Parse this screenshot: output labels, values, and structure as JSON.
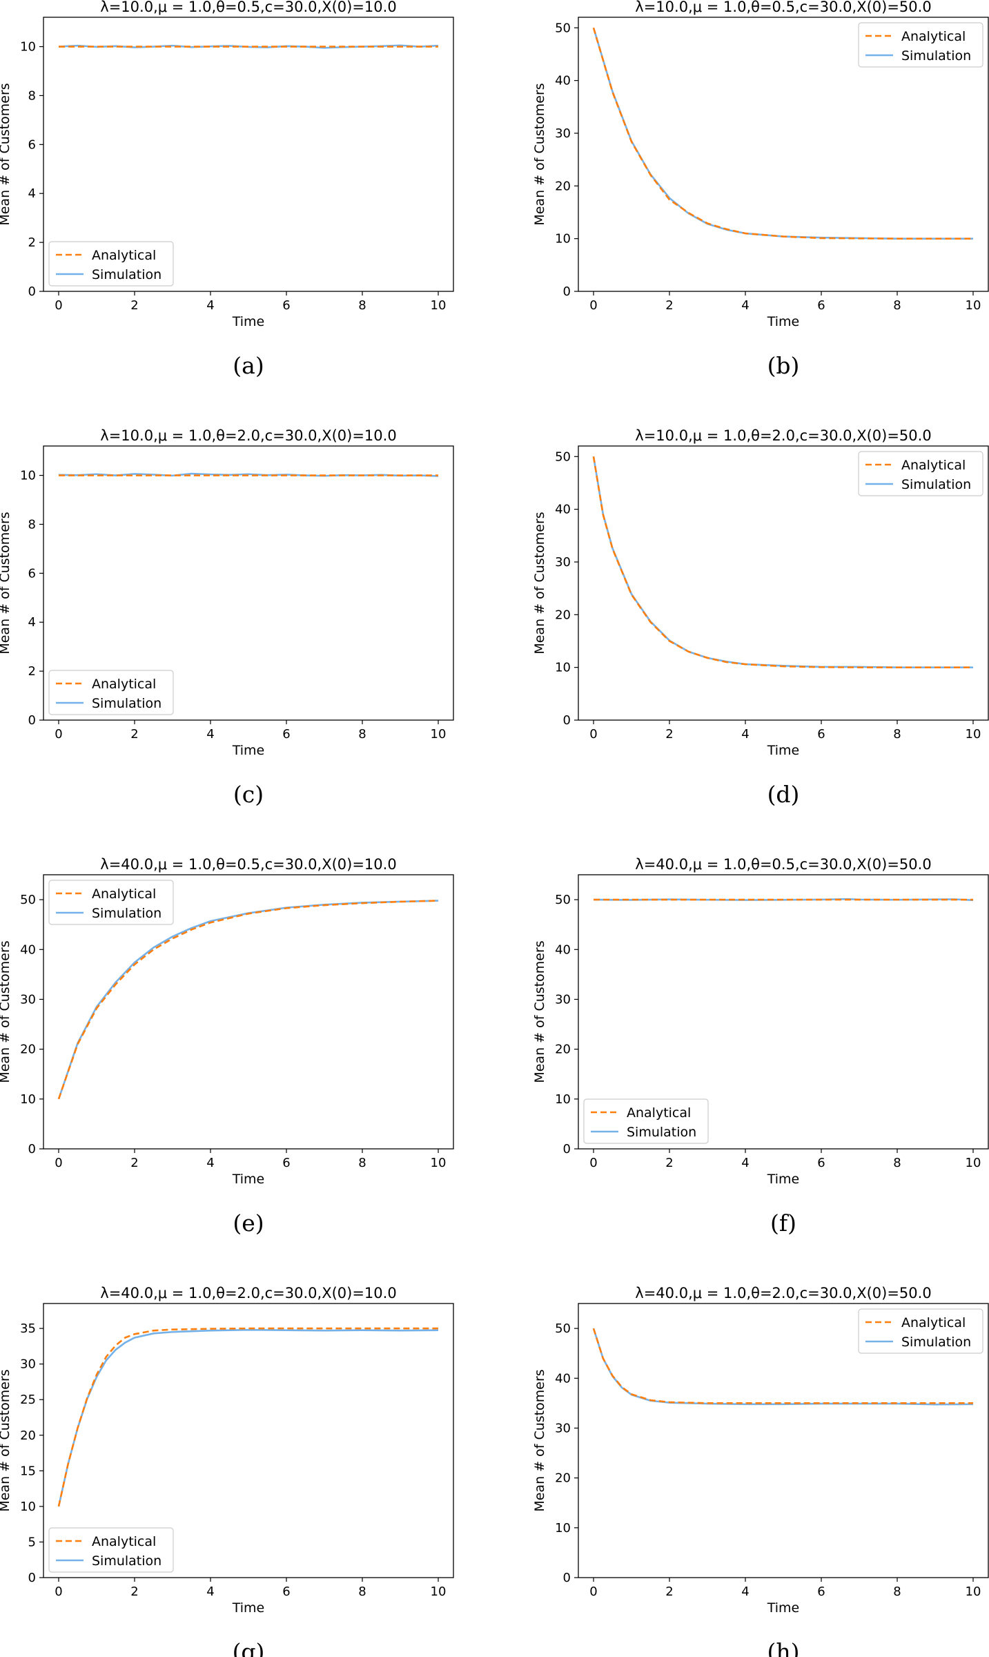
{
  "colors": {
    "analytical": "#ff7f0e",
    "simulation": "#74b1e8",
    "axes": "#000000"
  },
  "chart_data": [
    {
      "type": "line",
      "title": "λ=10.0,μ = 1.0,θ=0.5,c=30.0,X(0)=10.0",
      "xlabel": "Time",
      "ylabel": "Mean # of Customers",
      "caption": "(a)",
      "xlim": [
        -0.4,
        10.4
      ],
      "ylim": [
        0,
        11.2
      ],
      "xticks": [
        0,
        2,
        4,
        6,
        8,
        10
      ],
      "yticks": [
        0,
        2,
        4,
        6,
        8,
        10
      ],
      "legend_position": "lower-left",
      "series": [
        {
          "name": "Analytical",
          "style": "dashed",
          "x": [
            0,
            10
          ],
          "y": [
            10.0,
            10.0
          ]
        },
        {
          "name": "Simulation",
          "style": "solid",
          "x": [
            0,
            0.5,
            1,
            1.5,
            2,
            2.5,
            3,
            3.5,
            4,
            4.5,
            5,
            5.5,
            6,
            6.5,
            7,
            7.5,
            8,
            8.5,
            9,
            9.5,
            10
          ],
          "y": [
            10.0,
            10.04,
            9.99,
            10.02,
            9.97,
            10.0,
            10.04,
            9.98,
            10.01,
            10.03,
            9.99,
            9.97,
            10.02,
            10.0,
            9.95,
            9.98,
            10.0,
            10.02,
            10.05,
            10.0,
            10.04
          ]
        }
      ]
    },
    {
      "type": "line",
      "title": "λ=10.0,μ = 1.0,θ=0.5,c=30.0,X(0)=50.0",
      "xlabel": "Time",
      "ylabel": "Mean # of Customers",
      "caption": "(b)",
      "xlim": [
        -0.4,
        10.4
      ],
      "ylim": [
        0,
        52
      ],
      "xticks": [
        0,
        2,
        4,
        6,
        8,
        10
      ],
      "yticks": [
        0,
        10,
        20,
        30,
        40,
        50
      ],
      "legend_position": "upper-right",
      "series": [
        {
          "name": "Analytical",
          "style": "dashed",
          "x": [
            0,
            0.5,
            1,
            1.5,
            2,
            2.5,
            3,
            3.5,
            4,
            5,
            6,
            7,
            8,
            9,
            10
          ],
          "y": [
            50.0,
            37.8,
            28.4,
            22.1,
            17.4,
            14.9,
            12.9,
            11.8,
            11.0,
            10.4,
            10.1,
            10.05,
            10.0,
            10.0,
            10.0
          ]
        },
        {
          "name": "Simulation",
          "style": "solid",
          "x": [
            0,
            0.5,
            1,
            1.5,
            2,
            2.5,
            3,
            3.5,
            4,
            5,
            6,
            7,
            8,
            9,
            10
          ],
          "y": [
            50.0,
            37.9,
            28.5,
            22.2,
            17.7,
            14.8,
            12.8,
            11.7,
            11.0,
            10.4,
            10.2,
            10.1,
            10.0,
            10.0,
            10.0
          ]
        }
      ]
    },
    {
      "type": "line",
      "title": "λ=10.0,μ = 1.0,θ=2.0,c=30.0,X(0)=10.0",
      "xlabel": "Time",
      "ylabel": "Mean # of Customers",
      "caption": "(c)",
      "xlim": [
        -0.4,
        10.4
      ],
      "ylim": [
        0,
        11.2
      ],
      "xticks": [
        0,
        2,
        4,
        6,
        8,
        10
      ],
      "yticks": [
        0,
        2,
        4,
        6,
        8,
        10
      ],
      "legend_position": "lower-left",
      "series": [
        {
          "name": "Analytical",
          "style": "dashed",
          "x": [
            0,
            10
          ],
          "y": [
            10.0,
            10.0
          ]
        },
        {
          "name": "Simulation",
          "style": "solid",
          "x": [
            0,
            0.5,
            1,
            1.5,
            2,
            2.5,
            3,
            3.5,
            4,
            4.5,
            5,
            5.5,
            6,
            6.5,
            7,
            7.5,
            8,
            8.5,
            9,
            9.5,
            10
          ],
          "y": [
            10.02,
            10.01,
            10.05,
            10.0,
            10.06,
            10.03,
            9.99,
            10.07,
            10.04,
            10.02,
            10.05,
            10.01,
            10.03,
            10.0,
            9.98,
            10.01,
            10.0,
            10.02,
            9.99,
            10.0,
            9.97
          ]
        }
      ]
    },
    {
      "type": "line",
      "title": "λ=10.0,μ = 1.0,θ=2.0,c=30.0,X(0)=50.0",
      "xlabel": "Time",
      "ylabel": "Mean # of Customers",
      "caption": "(d)",
      "xlim": [
        -0.4,
        10.4
      ],
      "ylim": [
        0,
        52
      ],
      "xticks": [
        0,
        2,
        4,
        6,
        8,
        10
      ],
      "yticks": [
        0,
        10,
        20,
        30,
        40,
        50
      ],
      "legend_position": "upper-right",
      "series": [
        {
          "name": "Analytical",
          "style": "dashed",
          "x": [
            0,
            0.25,
            0.5,
            1,
            1.5,
            2,
            2.5,
            3,
            3.5,
            4,
            5,
            6,
            7,
            8,
            9,
            10
          ],
          "y": [
            50.0,
            39.0,
            32.5,
            23.8,
            18.6,
            15.0,
            13.0,
            11.8,
            11.0,
            10.6,
            10.2,
            10.05,
            10.0,
            10.0,
            10.0,
            10.0
          ]
        },
        {
          "name": "Simulation",
          "style": "solid",
          "x": [
            0,
            0.25,
            0.5,
            1,
            1.5,
            2,
            2.5,
            3,
            3.5,
            4,
            5,
            6,
            7,
            8,
            9,
            10
          ],
          "y": [
            50.0,
            39.1,
            32.6,
            23.9,
            18.7,
            15.1,
            13.0,
            11.8,
            11.1,
            10.6,
            10.3,
            10.1,
            10.1,
            10.0,
            10.0,
            10.0
          ]
        }
      ]
    },
    {
      "type": "line",
      "title": "λ=40.0,μ = 1.0,θ=0.5,c=30.0,X(0)=10.0",
      "xlabel": "Time",
      "ylabel": "Mean # of Customers",
      "caption": "(e)",
      "xlim": [
        -0.4,
        10.4
      ],
      "ylim": [
        0,
        55
      ],
      "xticks": [
        0,
        2,
        4,
        6,
        8,
        10
      ],
      "yticks": [
        0,
        10,
        20,
        30,
        40,
        50
      ],
      "legend_position": "upper-left",
      "series": [
        {
          "name": "Analytical",
          "style": "dashed",
          "x": [
            0,
            0.5,
            1,
            1.5,
            2,
            2.5,
            3,
            3.5,
            4,
            5,
            6,
            7,
            8,
            9,
            10
          ],
          "y": [
            10.0,
            21.0,
            28.2,
            33.0,
            37.0,
            40.0,
            42.2,
            44.0,
            45.4,
            47.2,
            48.3,
            48.9,
            49.3,
            49.6,
            49.8
          ]
        },
        {
          "name": "Simulation",
          "style": "solid",
          "x": [
            0,
            0.5,
            1,
            1.5,
            2,
            2.5,
            3,
            3.5,
            4,
            5,
            6,
            7,
            8,
            9,
            10
          ],
          "y": [
            10.0,
            21.2,
            28.5,
            33.4,
            37.4,
            40.4,
            42.6,
            44.3,
            45.7,
            47.3,
            48.4,
            49.0,
            49.4,
            49.6,
            49.8
          ]
        }
      ]
    },
    {
      "type": "line",
      "title": "λ=40.0,μ = 1.0,θ=0.5,c=30.0,X(0)=50.0",
      "xlabel": "Time",
      "ylabel": "Mean # of Customers",
      "caption": "(f)",
      "xlim": [
        -0.4,
        10.4
      ],
      "ylim": [
        0,
        55
      ],
      "xticks": [
        0,
        2,
        4,
        6,
        8,
        10
      ],
      "yticks": [
        0,
        10,
        20,
        30,
        40,
        50
      ],
      "legend_position": "lower-left",
      "series": [
        {
          "name": "Analytical",
          "style": "dashed",
          "x": [
            0,
            10
          ],
          "y": [
            50.0,
            50.0
          ]
        },
        {
          "name": "Simulation",
          "style": "solid",
          "x": [
            0,
            1,
            2,
            3,
            4,
            5,
            6,
            6.7,
            7,
            8,
            9,
            9.5,
            10
          ],
          "y": [
            50.0,
            49.95,
            50.05,
            49.98,
            49.94,
            49.97,
            50.02,
            50.12,
            50.03,
            49.98,
            50.05,
            50.08,
            49.9
          ]
        }
      ]
    },
    {
      "type": "line",
      "title": "λ=40.0,μ = 1.0,θ=2.0,c=30.0,X(0)=10.0",
      "xlabel": "Time",
      "ylabel": "Mean # of Customers",
      "caption": "(g)",
      "xlim": [
        -0.4,
        10.4
      ],
      "ylim": [
        0,
        38.5
      ],
      "xticks": [
        0,
        2,
        4,
        6,
        8,
        10
      ],
      "yticks": [
        0,
        5,
        10,
        15,
        20,
        25,
        30,
        35
      ],
      "legend_position": "lower-left",
      "series": [
        {
          "name": "Analytical",
          "style": "dashed",
          "x": [
            0,
            0.25,
            0.5,
            0.75,
            1,
            1.25,
            1.5,
            1.75,
            2,
            2.5,
            3,
            4,
            5,
            6,
            7,
            8,
            9,
            10
          ],
          "y": [
            10.0,
            16.0,
            21.0,
            25.2,
            28.5,
            31.0,
            32.6,
            33.7,
            34.2,
            34.7,
            34.85,
            34.95,
            35.0,
            35.0,
            35.0,
            35.0,
            35.0,
            35.0
          ]
        },
        {
          "name": "Simulation",
          "style": "solid",
          "x": [
            0,
            0.25,
            0.5,
            0.75,
            1,
            1.25,
            1.5,
            1.75,
            2,
            2.5,
            3,
            4,
            5,
            6,
            7,
            8,
            9,
            10
          ],
          "y": [
            10.0,
            16.0,
            21.0,
            25.1,
            28.2,
            30.5,
            32.0,
            33.0,
            33.7,
            34.3,
            34.5,
            34.7,
            34.8,
            34.75,
            34.7,
            34.75,
            34.7,
            34.75
          ]
        }
      ]
    },
    {
      "type": "line",
      "title": "λ=40.0,μ = 1.0,θ=2.0,c=30.0,X(0)=50.0",
      "xlabel": "Time",
      "ylabel": "Mean # of Customers",
      "caption": "(h)",
      "xlim": [
        -0.4,
        10.4
      ],
      "ylim": [
        0,
        55
      ],
      "xticks": [
        0,
        2,
        4,
        6,
        8,
        10
      ],
      "yticks": [
        0,
        10,
        20,
        30,
        40,
        50
      ],
      "legend_position": "upper-right",
      "series": [
        {
          "name": "Analytical",
          "style": "dashed",
          "x": [
            0,
            0.25,
            0.5,
            0.75,
            1,
            1.5,
            2,
            2.5,
            3,
            4,
            5,
            6,
            7,
            8,
            9,
            10
          ],
          "y": [
            50.0,
            44.0,
            40.5,
            38.2,
            36.8,
            35.6,
            35.2,
            35.1,
            35.0,
            35.0,
            35.0,
            35.0,
            35.0,
            35.0,
            35.0,
            35.0
          ]
        },
        {
          "name": "Simulation",
          "style": "solid",
          "x": [
            0,
            0.25,
            0.5,
            0.75,
            1,
            1.5,
            2,
            2.5,
            3,
            4,
            5,
            6,
            7,
            8,
            9,
            10
          ],
          "y": [
            50.0,
            44.0,
            40.4,
            38.1,
            36.7,
            35.5,
            35.1,
            35.0,
            34.9,
            34.8,
            34.8,
            34.9,
            34.9,
            34.9,
            34.75,
            34.8
          ]
        }
      ]
    }
  ]
}
